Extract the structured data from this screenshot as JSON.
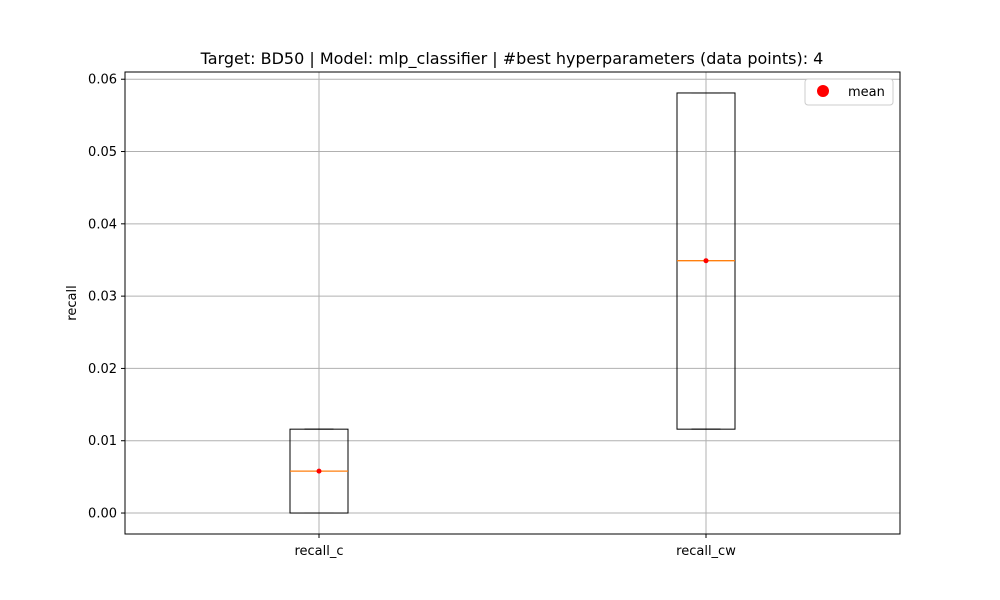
{
  "chart_data": {
    "type": "box",
    "title": "Target: BD50 | Model: mlp_classifier | #best hyperparameters (data points): 4",
    "xlabel": "",
    "ylabel": "recall",
    "categories": [
      "recall_c",
      "recall_cw"
    ],
    "boxes": [
      {
        "name": "recall_c",
        "min": 0.0,
        "q1": 0.0,
        "median": 0.0058,
        "q3": 0.0116,
        "max": 0.0116,
        "mean": 0.0058
      },
      {
        "name": "recall_cw",
        "min": 0.0116,
        "q1": 0.0116,
        "median": 0.0349,
        "q3": 0.0581,
        "max": 0.0581,
        "mean": 0.0349
      }
    ],
    "ylim": [
      -0.0029,
      0.061
    ],
    "yticks": [
      0.0,
      0.01,
      0.02,
      0.03,
      0.04,
      0.05,
      0.06
    ],
    "ytick_labels": [
      "0.00",
      "0.01",
      "0.02",
      "0.03",
      "0.04",
      "0.05",
      "0.06"
    ],
    "grid": true,
    "legend": {
      "position": "top-right",
      "entries": [
        {
          "label": "mean",
          "marker": "circle",
          "color": "#ff0000"
        }
      ]
    },
    "colors": {
      "box": "#000000",
      "median": "#ff7f0e",
      "mean": "#ff0000",
      "grid": "#b0b0b0"
    }
  }
}
